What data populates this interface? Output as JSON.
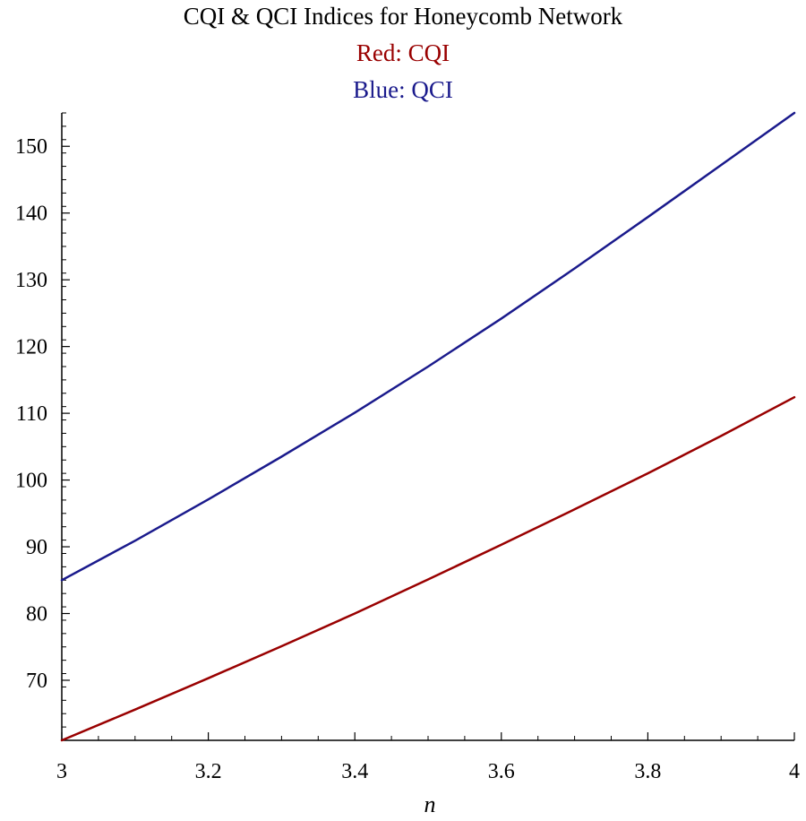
{
  "chart_data": {
    "type": "line",
    "title": "CQI & QCI Indices for Honeycomb Network",
    "subtitle_lines": [
      {
        "text": "Red: CQI",
        "color": "#990000"
      },
      {
        "text": "Blue: QCI",
        "color": "#1a1a8c"
      }
    ],
    "xlabel": "n",
    "ylabel": "",
    "xlim": [
      3,
      4
    ],
    "ylim": [
      61,
      155
    ],
    "x_ticks": [
      3,
      3.2,
      3.4,
      3.6,
      3.8,
      4
    ],
    "x_tick_labels": [
      "3",
      "3.2",
      "3.4",
      "3.6",
      "3.8",
      "4"
    ],
    "y_ticks": [
      70,
      80,
      90,
      100,
      110,
      120,
      130,
      140,
      150
    ],
    "y_tick_labels": [
      "70",
      "80",
      "90",
      "100",
      "110",
      "120",
      "130",
      "140",
      "150"
    ],
    "grid": false,
    "x": [
      3.0,
      3.1,
      3.2,
      3.3,
      3.4,
      3.5,
      3.6,
      3.7,
      3.8,
      3.9,
      4.0
    ],
    "series": [
      {
        "color": "#990000",
        "values": [
          61.0,
          65.6,
          70.3,
          75.1,
          80.0,
          85.1,
          90.3,
          95.6,
          101.0,
          106.6,
          112.4
        ]
      },
      {
        "color": "#1a1a8c",
        "values": [
          85.0,
          90.9,
          97.1,
          103.5,
          110.1,
          117.0,
          124.2,
          131.7,
          139.4,
          147.2,
          155.0
        ]
      }
    ]
  }
}
